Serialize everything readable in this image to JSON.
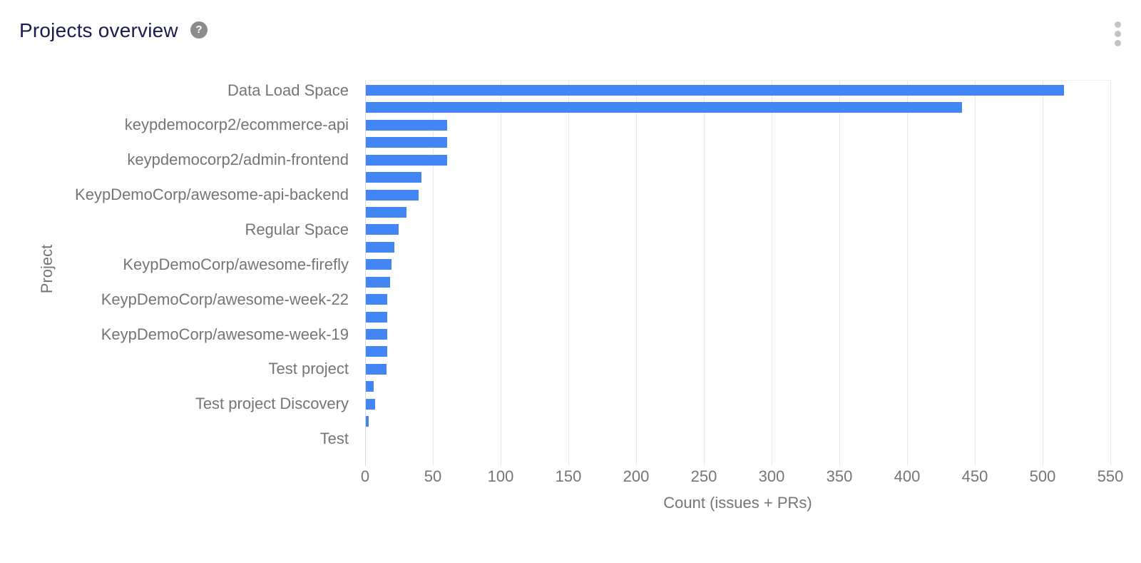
{
  "header": {
    "title": "Projects overview",
    "help_icon_glyph": "?",
    "menu_icon": "kebab-vertical-icon"
  },
  "colors": {
    "title_text": "#1B1B4F",
    "axis_text": "#757575",
    "gridline": "#E9E9E9",
    "zero_axis_line": "#D9D9D9",
    "plot_top_line": "#F1F1F1",
    "bar_fill": "#4285F4",
    "help_icon_bg": "#8C8C8C",
    "kebab_dot": "#C3C3C3"
  },
  "chart_data": {
    "type": "bar",
    "orientation": "horizontal",
    "title": "Projects overview",
    "xlabel": "Count (issues + PRs)",
    "ylabel": "Project",
    "xlim": [
      0,
      550
    ],
    "xticks": [
      0,
      50,
      100,
      150,
      200,
      250,
      300,
      350,
      400,
      450,
      500,
      550
    ],
    "grid": true,
    "legend": "none",
    "axis_label_note": "only every other category label is shown on the axis",
    "categories": [
      "Data Load Space",
      "",
      "keypdemocorp2/ecommerce-api",
      "",
      "keypdemocorp2/admin-frontend",
      "",
      "KeypDemoCorp/awesome-api-backend",
      "",
      "Regular Space",
      "",
      "KeypDemoCorp/awesome-firefly",
      "",
      "KeypDemoCorp/awesome-week-22",
      "",
      "KeypDemoCorp/awesome-week-19",
      "",
      "Test project",
      "",
      "Test project Discovery",
      "",
      "Test"
    ],
    "values": [
      515,
      440,
      60,
      60,
      60,
      41,
      39,
      30,
      24,
      21,
      19,
      18,
      16,
      16,
      16,
      16,
      15,
      6,
      7,
      2,
      0
    ]
  }
}
